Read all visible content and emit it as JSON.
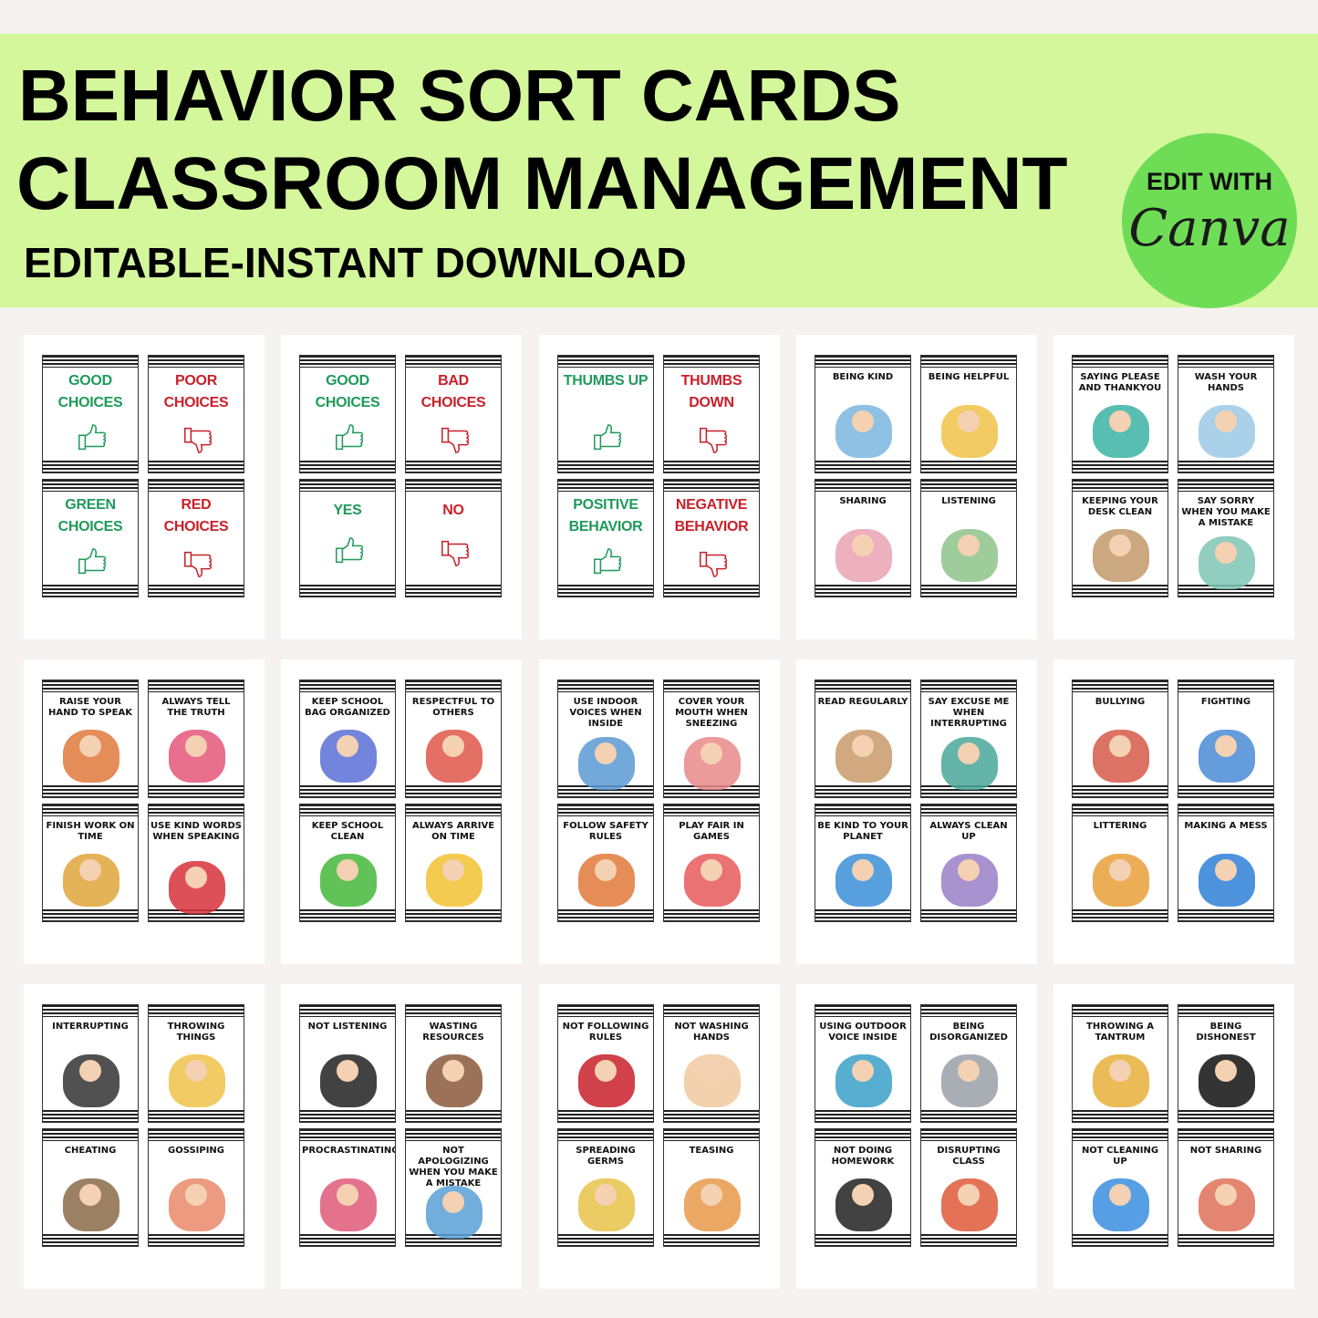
{
  "header": {
    "title_line1": "BEHAVIOR SORT CARDS",
    "title_line2": "CLASSROOM MANAGEMENT",
    "subtitle": "EDITABLE-INSTANT DOWNLOAD",
    "badge_top": "EDIT WITH",
    "badge_brand": "Canva"
  },
  "colors": {
    "banner": "#d4f79c",
    "badge": "#6fdc55",
    "good": "#1f9a5a",
    "bad": "#c8202a"
  },
  "pages": [
    {
      "cards": [
        {
          "label": "GOOD CHOICES",
          "style": "good",
          "icon": "thumbs-up"
        },
        {
          "label": "POOR CHOICES",
          "style": "bad",
          "icon": "thumbs-down"
        },
        {
          "label": "GREEN CHOICES",
          "style": "good",
          "icon": "thumbs-up"
        },
        {
          "label": "RED CHOICES",
          "style": "bad",
          "icon": "thumbs-down"
        }
      ]
    },
    {
      "cards": [
        {
          "label": "GOOD CHOICES",
          "style": "good",
          "icon": "thumbs-up"
        },
        {
          "label": "BAD CHOICES",
          "style": "bad",
          "icon": "thumbs-down"
        },
        {
          "label": "YES",
          "style": "good",
          "icon": "thumbs-up"
        },
        {
          "label": "NO",
          "style": "bad",
          "icon": "thumbs-down"
        }
      ]
    },
    {
      "cards": [
        {
          "label": "THUMBS UP",
          "style": "good",
          "icon": "thumbs-up"
        },
        {
          "label": "THUMBS DOWN",
          "style": "bad",
          "icon": "thumbs-down"
        },
        {
          "label": "POSITIVE BEHAVIOR",
          "style": "good",
          "icon": "thumbs-up"
        },
        {
          "label": "NEGATIVE BEHAVIOR",
          "style": "bad",
          "icon": "thumbs-down"
        }
      ]
    },
    {
      "cards": [
        {
          "label": "BEING KIND",
          "icon": "kids-illustration",
          "tint": "#7cb7e0"
        },
        {
          "label": "BEING HELPFUL",
          "icon": "kids-illustration",
          "tint": "#f0c24a"
        },
        {
          "label": "SHARING",
          "icon": "kids-illustration",
          "tint": "#e9a3b5"
        },
        {
          "label": "LISTENING",
          "icon": "classroom-illustration",
          "tint": "#8fc48a"
        }
      ]
    },
    {
      "cards": [
        {
          "label": "SAYING PLEASE AND THANKYOU",
          "icon": "kids-illustration",
          "tint": "#3bb3a5"
        },
        {
          "label": "WASH YOUR HANDS",
          "icon": "handwashing-illustration",
          "tint": "#9cc9e6"
        },
        {
          "label": "KEEPING YOUR DESK CLEAN",
          "icon": "desk-illustration",
          "tint": "#c49a6c"
        },
        {
          "label": "SAY SORRY WHEN YOU MAKE A MISTAKE",
          "icon": "cat-illustration",
          "tint": "#7fc6b6"
        }
      ]
    },
    {
      "cards": [
        {
          "label": "RAISE YOUR HAND TO SPEAK",
          "icon": "kid-illustration",
          "tint": "#e07a3c"
        },
        {
          "label": "ALWAYS TELL THE TRUTH",
          "icon": "kids-illustration",
          "tint": "#e4577a"
        },
        {
          "label": "FINISH WORK ON TIME",
          "icon": "clock-illustration",
          "tint": "#e0a53a"
        },
        {
          "label": "USE KIND WORDS WHEN SPEAKING",
          "icon": "heart-hands-illustration",
          "tint": "#d9323a"
        }
      ]
    },
    {
      "cards": [
        {
          "label": "KEEP SCHOOL BAG ORGANIZED",
          "icon": "backpack-illustration",
          "tint": "#5b6fd6"
        },
        {
          "label": "RESPECTFUL TO OTHERS",
          "icon": "people-illustration",
          "tint": "#e0564a"
        },
        {
          "label": "KEEP SCHOOL CLEAN",
          "icon": "recycle-illustration",
          "tint": "#46b83a"
        },
        {
          "label": "ALWAYS ARRIVE ON TIME",
          "icon": "clock-illustration",
          "tint": "#f1c232"
        }
      ]
    },
    {
      "cards": [
        {
          "label": "USE INDOOR VOICES WHEN INSIDE",
          "icon": "kid-illustration",
          "tint": "#5a9bd4"
        },
        {
          "label": "COVER YOUR MOUTH WHEN SNEEZING",
          "icon": "kid-illustration",
          "tint": "#e98a8a"
        },
        {
          "label": "FOLLOW SAFETY RULES",
          "icon": "warning-illustration",
          "tint": "#e27a3a"
        },
        {
          "label": "PLAY FAIR IN GAMES",
          "icon": "playground-illustration",
          "tint": "#e85a5a"
        }
      ]
    },
    {
      "cards": [
        {
          "label": "READ REGULARLY",
          "icon": "bear-illustration",
          "tint": "#c99b6a"
        },
        {
          "label": "SAY EXCUSE ME WHEN INTERRUPTING",
          "icon": "finger-illustration",
          "tint": "#4aa89b"
        },
        {
          "label": "BE KIND TO YOUR PLANET",
          "icon": "earth-illustration",
          "tint": "#3b8fd8"
        },
        {
          "label": "ALWAYS CLEAN UP",
          "icon": "toys-illustration",
          "tint": "#9a7fc8"
        }
      ]
    },
    {
      "cards": [
        {
          "label": "BULLYING",
          "icon": "kids-illustration",
          "tint": "#d65a4a"
        },
        {
          "label": "FIGHTING",
          "icon": "kids-illustration",
          "tint": "#4a8bd6"
        },
        {
          "label": "LITTERING",
          "icon": "kid-illustration",
          "tint": "#e8a13a"
        },
        {
          "label": "MAKING A MESS",
          "icon": "mess-illustration",
          "tint": "#2f7fd8"
        }
      ]
    },
    {
      "cards": [
        {
          "label": "INTERRUPTING",
          "icon": "silhouette-illustration",
          "tint": "#333333"
        },
        {
          "label": "THROWING THINGS",
          "icon": "kid-illustration",
          "tint": "#f0c24a"
        },
        {
          "label": "CHEATING",
          "icon": "desk-illustration",
          "tint": "#8a6a4a"
        },
        {
          "label": "GOSSIPING",
          "icon": "kids-illustration",
          "tint": "#e98a6a"
        }
      ]
    },
    {
      "cards": [
        {
          "label": "NOT LISTENING",
          "icon": "ear-illustration",
          "tint": "#222222"
        },
        {
          "label": "WASTING RESOURCES",
          "icon": "stump-illustration",
          "tint": "#8a5a3a"
        },
        {
          "label": "PROCRASTINATING",
          "icon": "kid-illustration",
          "tint": "#e05a7a"
        },
        {
          "label": "NOT APOLOGIZING WHEN YOU MAKE A MISTAKE",
          "icon": "kid-illustration",
          "tint": "#5aa0d6"
        }
      ]
    },
    {
      "cards": [
        {
          "label": "NOT FOLLOWING RULES",
          "icon": "rule-book-illustration",
          "tint": "#c8202a"
        },
        {
          "label": "NOT WASHING HANDS",
          "icon": "hands-illustration",
          "tint": "#f1c9a0"
        },
        {
          "label": "SPREADING GERMS",
          "icon": "kids-illustration",
          "tint": "#e8c24a"
        },
        {
          "label": "TEASING",
          "icon": "kid-illustration",
          "tint": "#e89a4a"
        }
      ]
    },
    {
      "cards": [
        {
          "label": "USING OUTDOOR VOICE INSIDE",
          "icon": "kid-illustration",
          "tint": "#3aa0c8"
        },
        {
          "label": "BEING DISORGANIZED",
          "icon": "desk-illustration",
          "tint": "#9aa0a8"
        },
        {
          "label": "NOT DOING HOMEWORK",
          "icon": "book-illustration",
          "tint": "#222222"
        },
        {
          "label": "DISRUPTING CLASS",
          "icon": "classroom-illustration",
          "tint": "#e05a3a"
        }
      ]
    },
    {
      "cards": [
        {
          "label": "THROWING A TANTRUM",
          "icon": "kid-illustration",
          "tint": "#e8b03a"
        },
        {
          "label": "BEING DISHONEST",
          "icon": "spy-illustration",
          "tint": "#111111"
        },
        {
          "label": "NOT CLEANING UP",
          "icon": "no-cleaning-illustration",
          "tint": "#3a8fe0"
        },
        {
          "label": "NOT SHARING",
          "icon": "kids-illustration",
          "tint": "#e0705a"
        }
      ]
    }
  ]
}
